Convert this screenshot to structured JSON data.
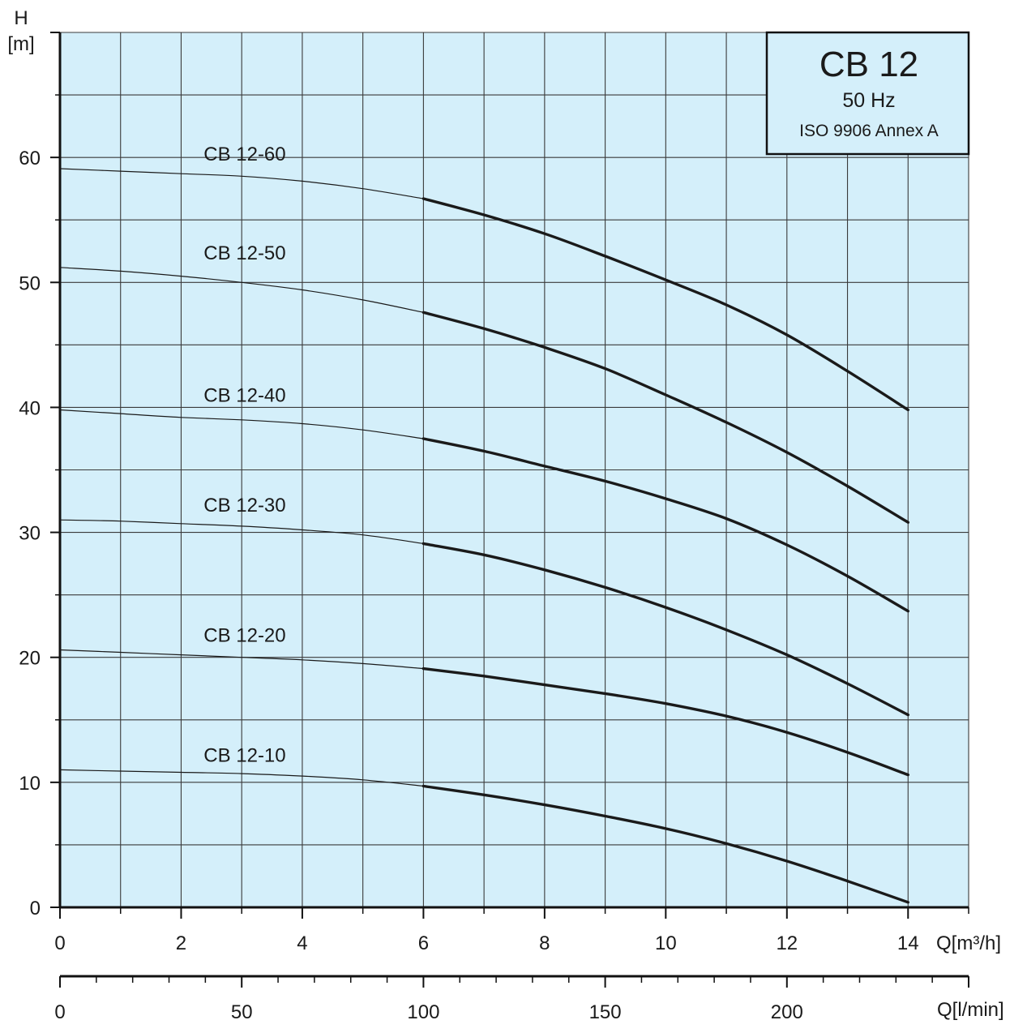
{
  "chart_data": {
    "type": "line",
    "title": "CB 12",
    "subtitle": "50 Hz",
    "standard": "ISO 9906 Annex A",
    "ylabel_symbol": "H",
    "ylabel_unit": "[m]",
    "xlabel": "Q[m³/h]",
    "xlabel_secondary": "Q[l/min]",
    "xlim": [
      0,
      15
    ],
    "ylim": [
      0,
      70
    ],
    "x_ticks": [
      0,
      2,
      4,
      6,
      8,
      10,
      12,
      14
    ],
    "y_ticks": [
      0,
      10,
      20,
      30,
      40,
      50,
      60
    ],
    "x_secondary_ticks": [
      0,
      50,
      100,
      150,
      200
    ],
    "x_secondary_range": [
      0,
      250
    ],
    "grid": true,
    "colors": {
      "plot_background": "#d4effa",
      "grid": "#3a3a3a",
      "curve": "#1a1a1a"
    },
    "series": [
      {
        "name": "CB 12-10",
        "x": [
          0,
          1,
          2,
          3,
          4,
          5,
          6,
          7,
          8,
          9,
          10,
          11,
          12,
          13,
          14
        ],
        "y": [
          11.0,
          10.9,
          10.8,
          10.7,
          10.5,
          10.2,
          9.7,
          9.0,
          8.2,
          7.3,
          6.3,
          5.1,
          3.7,
          2.1,
          0.4
        ]
      },
      {
        "name": "CB 12-20",
        "x": [
          0,
          1,
          2,
          3,
          4,
          5,
          6,
          7,
          8,
          9,
          10,
          11,
          12,
          13,
          14
        ],
        "y": [
          20.6,
          20.4,
          20.2,
          20.0,
          19.8,
          19.5,
          19.1,
          18.5,
          17.8,
          17.1,
          16.3,
          15.3,
          14.0,
          12.4,
          10.6
        ]
      },
      {
        "name": "CB 12-30",
        "x": [
          0,
          1,
          2,
          3,
          4,
          5,
          6,
          7,
          8,
          9,
          10,
          11,
          12,
          13,
          14
        ],
        "y": [
          31.0,
          30.9,
          30.7,
          30.5,
          30.2,
          29.8,
          29.1,
          28.2,
          27.0,
          25.6,
          24.0,
          22.2,
          20.2,
          17.9,
          15.4
        ]
      },
      {
        "name": "CB 12-40",
        "x": [
          0,
          1,
          2,
          3,
          4,
          5,
          6,
          7,
          8,
          9,
          10,
          11,
          12,
          13,
          14
        ],
        "y": [
          39.8,
          39.5,
          39.2,
          39.0,
          38.7,
          38.2,
          37.5,
          36.5,
          35.3,
          34.1,
          32.7,
          31.1,
          29.0,
          26.5,
          23.7
        ]
      },
      {
        "name": "CB 12-50",
        "x": [
          0,
          1,
          2,
          3,
          4,
          5,
          6,
          7,
          8,
          9,
          10,
          11,
          12,
          13,
          14
        ],
        "y": [
          51.2,
          50.9,
          50.5,
          50.0,
          49.4,
          48.6,
          47.6,
          46.3,
          44.8,
          43.1,
          41.0,
          38.8,
          36.4,
          33.7,
          30.8
        ]
      },
      {
        "name": "CB 12-60",
        "x": [
          0,
          1,
          2,
          3,
          4,
          5,
          6,
          7,
          8,
          9,
          10,
          11,
          12,
          13,
          14
        ],
        "y": [
          59.1,
          58.9,
          58.7,
          58.5,
          58.1,
          57.5,
          56.7,
          55.4,
          53.9,
          52.1,
          50.2,
          48.2,
          45.8,
          42.9,
          39.8
        ]
      }
    ],
    "label_x_position": 3.05
  }
}
